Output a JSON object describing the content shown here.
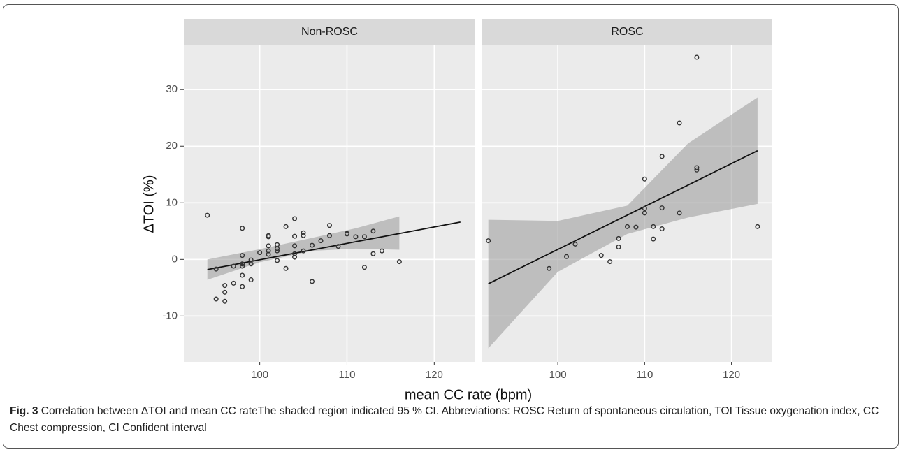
{
  "chart_data": {
    "type": "scatter",
    "x_label": "mean CC rate (bpm)",
    "y_label": "ΔTOI (%)",
    "xlim": [
      91.3,
      124.7
    ],
    "ylim": [
      -18.1,
      37.8
    ],
    "xticks": [
      100,
      110,
      120
    ],
    "yticks": [
      -10,
      0,
      10,
      20,
      30
    ],
    "grid": true,
    "point_color": "#333333",
    "line_color": "#111111",
    "band_color": "#999999",
    "panels": [
      {
        "title": "Non-ROSC",
        "x": [
          94,
          95,
          95,
          96,
          96,
          96,
          97,
          97,
          98,
          98,
          98,
          98,
          98,
          98,
          99,
          99,
          99,
          100,
          101,
          101,
          101,
          101,
          101,
          102,
          102,
          102,
          102,
          103,
          103,
          104,
          104,
          104,
          104,
          104,
          105,
          105,
          105,
          106,
          106,
          107,
          108,
          108,
          109,
          110,
          110,
          111,
          112,
          112,
          113,
          113,
          114,
          116
        ],
        "y": [
          7.8,
          -1.7,
          -7,
          -4.6,
          -5.8,
          -7.4,
          -1.2,
          -4.2,
          5.5,
          0.7,
          -0.8,
          -1.2,
          -2.8,
          -4.8,
          -0.1,
          -0.8,
          -3.6,
          1.2,
          4.2,
          4,
          2.4,
          1.5,
          0.9,
          2.6,
          1.9,
          1.5,
          -0.2,
          5.8,
          -1.6,
          7.2,
          4.1,
          2.4,
          1,
          0.4,
          4.7,
          4.2,
          1.5,
          2.5,
          -3.9,
          3.3,
          6,
          4.2,
          2.3,
          4.6,
          4.5,
          4,
          4,
          -1.4,
          5,
          1,
          1.5,
          -0.4
        ],
        "fit": {
          "x": [
            94,
            123
          ],
          "y": [
            -1.8,
            6.6
          ]
        },
        "band": {
          "x": [
            94,
            100,
            106,
            111,
            116
          ],
          "lower": [
            -3.6,
            -0.5,
            1.5,
            1.9,
            1.7
          ],
          "upper": [
            0,
            1.8,
            3.8,
            5.5,
            7.6
          ]
        }
      },
      {
        "title": "ROSC",
        "x": [
          92,
          99,
          101,
          102,
          105,
          106,
          107,
          107,
          108,
          109,
          110,
          110,
          110,
          111,
          111,
          112,
          112,
          112,
          114,
          114,
          116,
          116,
          116,
          123
        ],
        "y": [
          3.3,
          -1.6,
          0.5,
          2.7,
          0.7,
          -0.4,
          3.7,
          2.2,
          5.8,
          5.7,
          14.2,
          9,
          8.2,
          5.8,
          3.6,
          18.2,
          9.1,
          5.4,
          24.1,
          8.2,
          35.7,
          16.2,
          15.8,
          5.8
        ],
        "fit": {
          "x": [
            92,
            123
          ],
          "y": [
            -4.3,
            19.2
          ]
        },
        "band": {
          "x": [
            92,
            100,
            108,
            115,
            123
          ],
          "lower": [
            -15.7,
            -2.2,
            4.5,
            7.4,
            9.8
          ],
          "upper": [
            7,
            6.8,
            9.5,
            20.5,
            28.6
          ]
        }
      }
    ]
  },
  "caption": {
    "label": "Fig. 3",
    "text": "Correlation between ΔTOI and mean CC rateThe shaded region indicated 95 % CI. Abbreviations: ROSC Return of spontaneous circulation, TOI Tissue oxygenation index, CC Chest compression, CI Confident interval"
  }
}
